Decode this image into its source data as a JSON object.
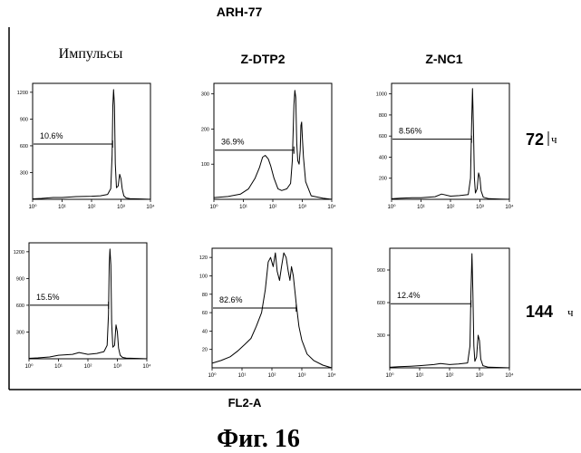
{
  "figure_title": "ARH-77",
  "x_axis_label": "FL2-A",
  "caption": "Фиг. 16",
  "column_titles": [
    "Импульсы",
    "Z-DTP2",
    "Z-NC1"
  ],
  "row_labels": [
    {
      "value": "72",
      "unit": "ч"
    },
    {
      "value": "144",
      "unit": "ч"
    }
  ],
  "chart_data": [
    {
      "type": "area",
      "panel": "row1-col1",
      "xscale": "log",
      "xlim": [
        1,
        10000
      ],
      "ylim": [
        0,
        1300
      ],
      "yticks": [
        "300",
        "600",
        "900",
        "1200"
      ],
      "xticks": [
        "10⁰",
        "10¹",
        "10²",
        "10³",
        "10⁴"
      ],
      "gate": {
        "label": "10.6%",
        "from": 1,
        "to": 520,
        "level": 620
      },
      "x": [
        1,
        2,
        5,
        10,
        30,
        100,
        200,
        350,
        450,
        500,
        530,
        560,
        600,
        640,
        700,
        800,
        900,
        1000,
        1100,
        1250,
        1500,
        2000,
        5000,
        10000
      ],
      "y": [
        5,
        10,
        20,
        20,
        30,
        35,
        40,
        55,
        120,
        500,
        1050,
        1230,
        1050,
        400,
        130,
        150,
        280,
        230,
        120,
        40,
        15,
        8,
        4,
        0
      ]
    },
    {
      "type": "area",
      "panel": "row1-col2",
      "xscale": "log",
      "xlim": [
        1,
        10000
      ],
      "ylim": [
        0,
        330
      ],
      "yticks": [
        "100",
        "200",
        "300"
      ],
      "xticks": [
        "10⁰",
        "10¹",
        "10²",
        "10³",
        "10⁴"
      ],
      "gate": {
        "label": "36.9%",
        "from": 1,
        "to": 520,
        "level": 140
      },
      "x": [
        1,
        3,
        8,
        15,
        25,
        35,
        45,
        55,
        70,
        85,
        110,
        150,
        200,
        300,
        400,
        460,
        520,
        560,
        600,
        650,
        700,
        780,
        850,
        900,
        950,
        1000,
        1100,
        1300,
        2000,
        5000,
        10000
      ],
      "y": [
        5,
        8,
        15,
        30,
        60,
        90,
        120,
        125,
        115,
        95,
        60,
        30,
        25,
        30,
        45,
        110,
        270,
        310,
        290,
        160,
        110,
        100,
        140,
        210,
        220,
        180,
        120,
        50,
        10,
        3,
        0
      ]
    },
    {
      "type": "area",
      "panel": "row1-col3",
      "xscale": "log",
      "xlim": [
        1,
        10000
      ],
      "ylim": [
        0,
        1100
      ],
      "yticks": [
        "200",
        "400",
        "600",
        "800",
        "1000"
      ],
      "xticks": [
        "10⁰",
        "10¹",
        "10²",
        "10³",
        "10⁴"
      ],
      "gate": {
        "label": "8.56%",
        "from": 1,
        "to": 520,
        "level": 570
      },
      "x": [
        1,
        2,
        5,
        10,
        30,
        50,
        100,
        200,
        400,
        480,
        520,
        560,
        600,
        650,
        700,
        800,
        900,
        1000,
        1100,
        1300,
        2000,
        5000,
        10000
      ],
      "y": [
        5,
        10,
        15,
        15,
        25,
        50,
        30,
        35,
        45,
        200,
        700,
        1050,
        700,
        200,
        60,
        100,
        250,
        200,
        80,
        20,
        6,
        3,
        0
      ]
    },
    {
      "type": "area",
      "panel": "row2-col1",
      "xscale": "log",
      "xlim": [
        1,
        10000
      ],
      "ylim": [
        0,
        1300
      ],
      "yticks": [
        "300",
        "600",
        "900",
        "1200"
      ],
      "xticks": [
        "10⁰",
        "10¹",
        "10²",
        "10³",
        "10⁴"
      ],
      "gate": {
        "label": "15.5%",
        "from": 1,
        "to": 500,
        "level": 600
      },
      "x": [
        1,
        2,
        5,
        10,
        30,
        50,
        100,
        200,
        350,
        450,
        500,
        530,
        560,
        600,
        640,
        700,
        800,
        900,
        1000,
        1100,
        1250,
        1500,
        2000,
        5000,
        10000
      ],
      "y": [
        5,
        10,
        20,
        40,
        50,
        70,
        50,
        60,
        80,
        150,
        500,
        1050,
        1230,
        1050,
        400,
        130,
        150,
        380,
        300,
        120,
        40,
        15,
        8,
        4,
        0
      ]
    },
    {
      "type": "area",
      "panel": "row2-col2",
      "xscale": "log",
      "xlim": [
        1,
        10000
      ],
      "ylim": [
        0,
        130
      ],
      "yticks": [
        "20",
        "40",
        "60",
        "80",
        "100",
        "120"
      ],
      "xticks": [
        "10⁰",
        "10¹",
        "10²",
        "10³",
        "10⁴"
      ],
      "gate": {
        "label": "82.6%",
        "from": 1,
        "to": 650,
        "level": 65
      },
      "x": [
        1,
        2,
        4,
        7,
        12,
        20,
        30,
        45,
        60,
        75,
        90,
        110,
        130,
        150,
        180,
        210,
        250,
        300,
        350,
        400,
        450,
        520,
        650,
        800,
        1000,
        1500,
        2500,
        5000,
        10000
      ],
      "y": [
        5,
        8,
        12,
        18,
        25,
        32,
        45,
        60,
        85,
        115,
        120,
        110,
        125,
        105,
        95,
        110,
        125,
        120,
        105,
        95,
        110,
        100,
        70,
        45,
        30,
        15,
        8,
        3,
        0
      ]
    },
    {
      "type": "area",
      "panel": "row2-col3",
      "xscale": "log",
      "xlim": [
        1,
        10000
      ],
      "ylim": [
        0,
        1100
      ],
      "yticks": [
        "300",
        "600",
        "900"
      ],
      "xticks": [
        "10⁰",
        "10¹",
        "10²",
        "10³",
        "10⁴"
      ],
      "gate": {
        "label": "12.4%",
        "from": 1,
        "to": 520,
        "level": 590
      },
      "x": [
        1,
        2,
        5,
        10,
        30,
        50,
        100,
        200,
        400,
        480,
        520,
        560,
        600,
        650,
        700,
        800,
        900,
        1000,
        1100,
        1300,
        2000,
        5000,
        10000
      ],
      "y": [
        5,
        10,
        15,
        20,
        30,
        40,
        30,
        35,
        45,
        200,
        700,
        1050,
        700,
        200,
        60,
        100,
        300,
        250,
        80,
        20,
        6,
        3,
        0
      ]
    }
  ]
}
